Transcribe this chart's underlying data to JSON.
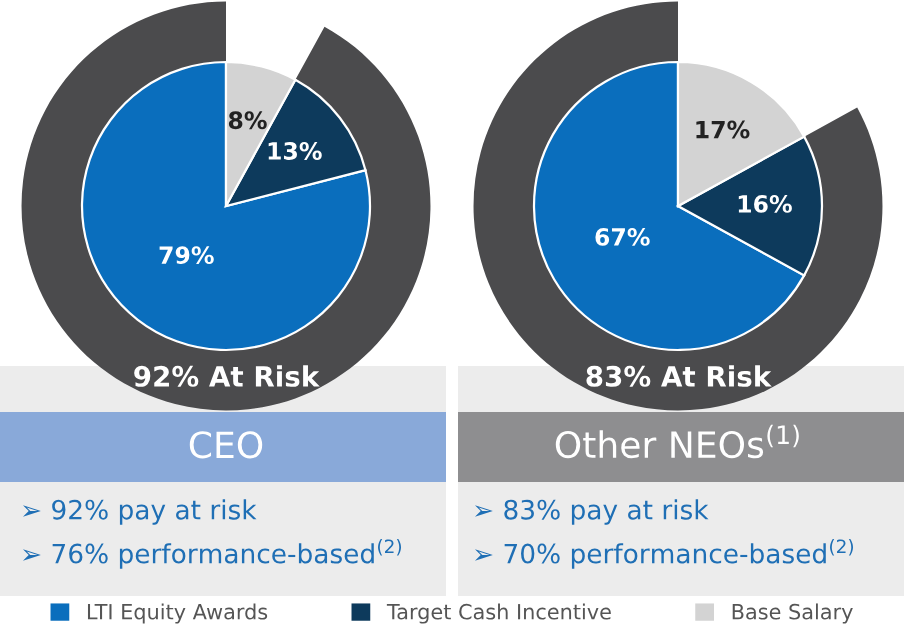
{
  "chart_data": [
    {
      "type": "pie",
      "title": "CEO",
      "categories": [
        "LTI Equity Awards",
        "Target Cash Incentive",
        "Base Salary"
      ],
      "values": [
        79,
        13,
        8
      ],
      "colors": [
        "#0a6ebd",
        "#0d3a5c",
        "#d3d3d3"
      ],
      "value_labels": [
        "79%",
        "13%",
        "8%"
      ],
      "legend": "bottom",
      "annotations": [
        "92% At Risk",
        "➢ 92% pay at risk",
        "➢ 76% performance-based$^{(2)}$"
      ]
    },
    {
      "type": "pie",
      "title": "Other NEOs$^{(1)}$",
      "categories": [
        null,
        null,
        null
      ],
      "values": [
        67,
        16,
        17
      ],
      "colors": [
        "#0a6ebd",
        "#0d3a5c",
        "#d3d3d3"
      ],
      "value_labels": [
        "67%",
        "16%",
        "17%"
      ],
      "annotations": [
        "83% At Risk",
        "➢ 83% pay at risk",
        "➢ 70% performance-based$^{(2)}$"
      ]
    }
  ]
}
